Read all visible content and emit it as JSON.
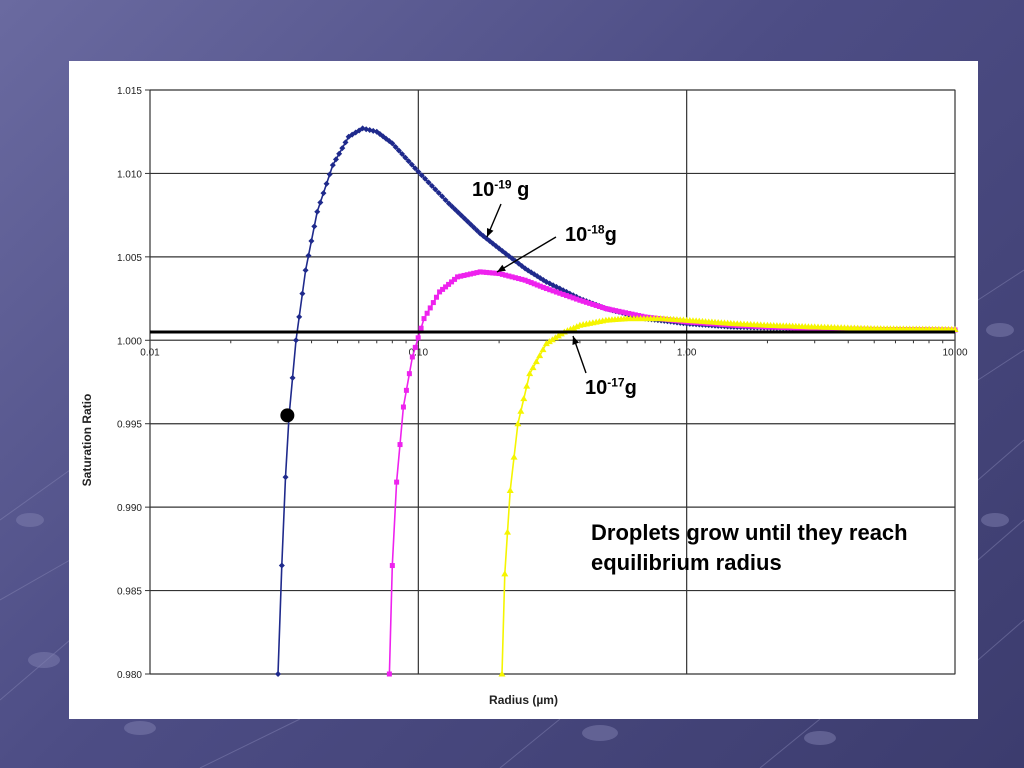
{
  "chart_data": {
    "type": "scatter",
    "title": "",
    "xlabel": "Radius (µm)",
    "ylabel": "Saturation Ratio",
    "x_scale": "log",
    "xlim": [
      0.01,
      10
    ],
    "ylim": [
      0.98,
      1.015
    ],
    "x_ticks": [
      0.01,
      0.1,
      1,
      10
    ],
    "x_tick_labels": [
      "0.01",
      "0.10",
      "1.00",
      "10.00"
    ],
    "y_ticks": [
      0.98,
      0.985,
      0.99,
      0.995,
      1.0,
      1.005,
      1.01,
      1.015
    ],
    "y_tick_labels": [
      "0.980",
      "0.985",
      "0.990",
      "0.995",
      "1.000",
      "1.005",
      "1.010",
      "1.015"
    ],
    "grid": true,
    "reference_line_y": 1.0005,
    "highlight_point": {
      "x": 0.0325,
      "y": 0.9955
    },
    "series": [
      {
        "color": "#1f2a8c",
        "points": [
          [
            0.03,
            0.98
          ],
          [
            0.031,
            0.9865
          ],
          [
            0.032,
            0.9918
          ],
          [
            0.033,
            0.9955
          ],
          [
            0.035,
            1.0
          ],
          [
            0.038,
            1.0042
          ],
          [
            0.042,
            1.0077
          ],
          [
            0.048,
            1.0105
          ],
          [
            0.055,
            1.0122
          ],
          [
            0.062,
            1.0127
          ],
          [
            0.07,
            1.0125
          ],
          [
            0.08,
            1.0118
          ],
          [
            0.1,
            1.0101
          ],
          [
            0.13,
            1.0082
          ],
          [
            0.17,
            1.0064
          ],
          [
            0.2,
            1.0055
          ],
          [
            0.25,
            1.0043
          ],
          [
            0.3,
            1.0035
          ],
          [
            0.4,
            1.0025
          ],
          [
            0.5,
            1.0019
          ],
          [
            0.7,
            1.0013
          ],
          [
            1,
            1.001
          ],
          [
            1.5,
            1.0008
          ],
          [
            2,
            1.00075
          ],
          [
            3,
            1.0007
          ],
          [
            5,
            1.00065
          ],
          [
            10,
            1.00062
          ]
        ]
      },
      {
        "color": "#ee22ee",
        "points": [
          [
            0.078,
            0.98
          ],
          [
            0.08,
            0.9865
          ],
          [
            0.083,
            0.9915
          ],
          [
            0.088,
            0.996
          ],
          [
            0.095,
            0.999
          ],
          [
            0.105,
            1.0013
          ],
          [
            0.12,
            1.0029
          ],
          [
            0.14,
            1.0038
          ],
          [
            0.17,
            1.0041
          ],
          [
            0.2,
            1.004
          ],
          [
            0.25,
            1.0036
          ],
          [
            0.3,
            1.0031
          ],
          [
            0.4,
            1.0024
          ],
          [
            0.5,
            1.0019
          ],
          [
            0.7,
            1.0014
          ],
          [
            1,
            1.0011
          ],
          [
            1.5,
            1.0009
          ],
          [
            2,
            1.0008
          ],
          [
            3,
            1.0007
          ],
          [
            5,
            1.00065
          ],
          [
            10,
            1.00062
          ]
        ]
      },
      {
        "color": "#f5f500",
        "points": [
          [
            0.205,
            0.98
          ],
          [
            0.21,
            0.986
          ],
          [
            0.22,
            0.991
          ],
          [
            0.235,
            0.995
          ],
          [
            0.26,
            0.998
          ],
          [
            0.3,
            0.9998
          ],
          [
            0.35,
            1.0005
          ],
          [
            0.4,
            1.0009
          ],
          [
            0.5,
            1.0012
          ],
          [
            0.6,
            1.0013
          ],
          [
            0.8,
            1.0013
          ],
          [
            1,
            1.0012
          ],
          [
            1.5,
            1.001
          ],
          [
            2,
            1.0009
          ],
          [
            3,
            1.0008
          ],
          [
            5,
            1.0007
          ],
          [
            10,
            1.00065
          ]
        ]
      }
    ],
    "annotations": [
      {
        "base": "10",
        "exp": "-19",
        "unit": " g"
      },
      {
        "base": "10",
        "exp": "-18",
        "unit": "g"
      },
      {
        "base": "10",
        "exp": "-17",
        "unit": "g"
      }
    ]
  },
  "note": "Droplets grow until they reach equilibrium radius"
}
